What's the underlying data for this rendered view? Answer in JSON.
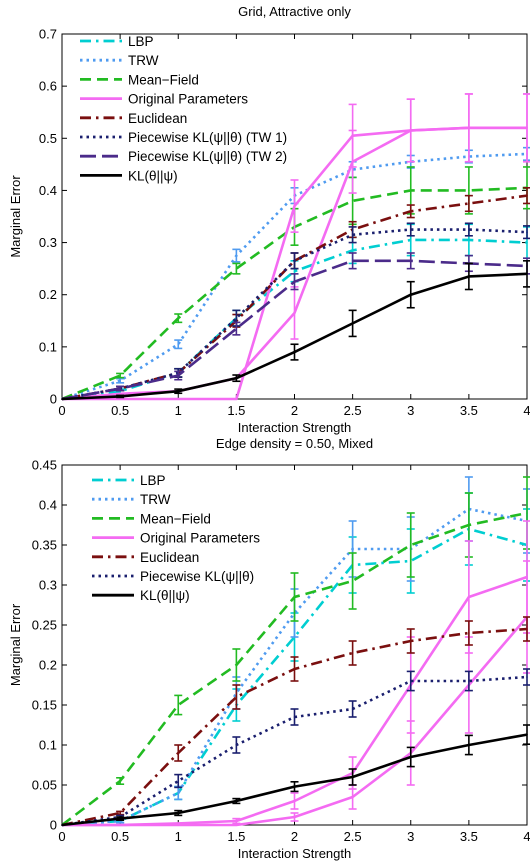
{
  "chart_data": [
    {
      "type": "line",
      "title": "Grid, Attractive only",
      "xlabel": "Interaction Strength",
      "ylabel": "Marginal Error",
      "xlim": [
        0,
        4
      ],
      "ylim": [
        0,
        0.7
      ],
      "xticks": [
        "0",
        "0.5",
        "1",
        "1.5",
        "2",
        "2.5",
        "3",
        "3.5",
        "4"
      ],
      "yticks": [
        "0",
        "0.1",
        "0.2",
        "0.3",
        "0.4",
        "0.5",
        "0.6",
        "0.7"
      ],
      "legend_position": "top-left",
      "series": [
        {
          "name": "LBP",
          "color": "#00CED1",
          "dash": "dashdot",
          "x": [
            0,
            0.5,
            1,
            1.5,
            2,
            2.5,
            3,
            3.5,
            4
          ],
          "y": [
            0,
            0.015,
            0.05,
            0.155,
            0.245,
            0.285,
            0.305,
            0.305,
            0.3
          ],
          "err": [
            0,
            0.004,
            0.008,
            0.015,
            0.02,
            0.025,
            0.03,
            0.03,
            0.03
          ]
        },
        {
          "name": "TRW",
          "color": "#4F9BF0",
          "dash": "dotted",
          "x": [
            0,
            0.5,
            1,
            1.5,
            2,
            2.5,
            3,
            3.5,
            4
          ],
          "y": [
            0,
            0.035,
            0.105,
            0.275,
            0.39,
            0.44,
            0.455,
            0.465,
            0.47
          ],
          "err": [
            0,
            0.004,
            0.008,
            0.012,
            0.015,
            0.015,
            0.012,
            0.012,
            0.012
          ]
        },
        {
          "name": "Mean−Field",
          "color": "#22BB22",
          "dash": "dashed",
          "x": [
            0,
            0.5,
            1,
            1.5,
            2,
            2.5,
            3,
            3.5,
            4
          ],
          "y": [
            0,
            0.045,
            0.155,
            0.25,
            0.33,
            0.38,
            0.4,
            0.4,
            0.405
          ],
          "err": [
            0,
            0.004,
            0.008,
            0.01,
            0.035,
            0.045,
            0.045,
            0.045,
            0.04
          ]
        },
        {
          "name": "Original Parameters",
          "color": "#F46BF2",
          "dash": "solid",
          "x": [
            0,
            0.5,
            1,
            1.5,
            2,
            2.5,
            3,
            3.5,
            4
          ],
          "y": [
            0,
            0,
            0,
            0,
            0.37,
            0.505,
            0.515,
            0.52,
            0.52
          ],
          "err": [
            0,
            0,
            0,
            0,
            0.05,
            0.06,
            0.06,
            0.065,
            0.065
          ]
        },
        {
          "name": "Original Parameters (b)",
          "color": "#F46BF2",
          "dash": "solid",
          "x": [
            0,
            0.5,
            1,
            1.5,
            2,
            2.5,
            3,
            3.5,
            4
          ],
          "y": [
            0,
            0.01,
            0.015,
            0.04,
            0.165,
            0.455,
            0.515,
            0.52,
            0.52
          ],
          "err": [
            0,
            0,
            0,
            0,
            0.05,
            0.06,
            0.06,
            0.065,
            0.065
          ]
        },
        {
          "name": "Euclidean",
          "color": "#7A0F0F",
          "dash": "dashdot",
          "x": [
            0,
            0.5,
            1,
            1.5,
            2,
            2.5,
            3,
            3.5,
            4
          ],
          "y": [
            0,
            0.02,
            0.05,
            0.15,
            0.265,
            0.325,
            0.36,
            0.375,
            0.39
          ],
          "err": [
            0,
            0.004,
            0.008,
            0.012,
            0.015,
            0.015,
            0.012,
            0.015,
            0.015
          ]
        },
        {
          "name": "Piecewise KL(ψ||θ) (TW 1)",
          "color": "#1A1F6E",
          "dash": "dotted",
          "x": [
            0,
            0.5,
            1,
            1.5,
            2,
            2.5,
            3,
            3.5,
            4
          ],
          "y": [
            0,
            0.02,
            0.05,
            0.155,
            0.265,
            0.315,
            0.325,
            0.325,
            0.32
          ],
          "err": [
            0,
            0.004,
            0.008,
            0.015,
            0.015,
            0.015,
            0.012,
            0.012,
            0.012
          ]
        },
        {
          "name": "Piecewise KL(ψ||θ) (TW 2)",
          "color": "#4B2B8A",
          "dash": "longdash",
          "x": [
            0,
            0.5,
            1,
            1.5,
            2,
            2.5,
            3,
            3.5,
            4
          ],
          "y": [
            0,
            0.02,
            0.045,
            0.135,
            0.225,
            0.265,
            0.265,
            0.26,
            0.255
          ],
          "err": [
            0,
            0.004,
            0.008,
            0.012,
            0.015,
            0.015,
            0.015,
            0.015,
            0.015
          ]
        },
        {
          "name": "KL(θ||ψ)",
          "color": "#000000",
          "dash": "solid",
          "x": [
            0,
            0.5,
            1,
            1.5,
            2,
            2.5,
            3,
            3.5,
            4
          ],
          "y": [
            0,
            0.005,
            0.015,
            0.04,
            0.09,
            0.145,
            0.2,
            0.235,
            0.24
          ],
          "err": [
            0,
            0.002,
            0.004,
            0.006,
            0.015,
            0.025,
            0.025,
            0.025,
            0.025
          ]
        }
      ],
      "legend": [
        {
          "label": "LBP",
          "color": "#00CED1",
          "dash": "dashdot"
        },
        {
          "label": "TRW",
          "color": "#4F9BF0",
          "dash": "dotted"
        },
        {
          "label": "Mean−Field",
          "color": "#22BB22",
          "dash": "dashed"
        },
        {
          "label": "Original Parameters",
          "color": "#F46BF2",
          "dash": "solid"
        },
        {
          "label": "Euclidean",
          "color": "#7A0F0F",
          "dash": "dashdot"
        },
        {
          "label": "Piecewise KL(ψ||θ) (TW 1)",
          "color": "#1A1F6E",
          "dash": "dotted"
        },
        {
          "label": "Piecewise KL(ψ||θ) (TW 2)",
          "color": "#4B2B8A",
          "dash": "longdash"
        },
        {
          "label": "KL(θ||ψ)",
          "color": "#000000",
          "dash": "solid"
        }
      ]
    },
    {
      "type": "line",
      "title": "Edge density = 0.50, Mixed",
      "xlabel": "Interaction Strength",
      "ylabel": "Marginal Error",
      "xlim": [
        0,
        4
      ],
      "ylim": [
        0,
        0.45
      ],
      "xticks": [
        "0",
        "0.5",
        "1",
        "1.5",
        "2",
        "2.5",
        "3",
        "3.5",
        "4"
      ],
      "yticks": [
        "0",
        "0.05",
        "0.1",
        "0.15",
        "0.2",
        "0.25",
        "0.3",
        "0.35",
        "0.4",
        "0.45"
      ],
      "legend_position": "top-left",
      "series": [
        {
          "name": "LBP",
          "color": "#00CED1",
          "dash": "dashdot",
          "x": [
            0,
            0.5,
            1,
            1.5,
            2,
            2.5,
            3,
            3.5,
            4
          ],
          "y": [
            0,
            0.005,
            0.04,
            0.15,
            0.235,
            0.325,
            0.33,
            0.37,
            0.35
          ],
          "err": [
            0,
            0.002,
            0.008,
            0.02,
            0.03,
            0.035,
            0.04,
            0.045,
            0.045
          ]
        },
        {
          "name": "TRW",
          "color": "#4F9BF0",
          "dash": "dotted",
          "x": [
            0,
            0.5,
            1,
            1.5,
            2,
            2.5,
            3,
            3.5,
            4
          ],
          "y": [
            0,
            0.005,
            0.04,
            0.165,
            0.265,
            0.345,
            0.345,
            0.395,
            0.38
          ],
          "err": [
            0,
            0.002,
            0.008,
            0.02,
            0.03,
            0.035,
            0.04,
            0.04,
            0.04
          ]
        },
        {
          "name": "Mean−Field",
          "color": "#22BB22",
          "dash": "dashed",
          "x": [
            0,
            0.5,
            1,
            1.5,
            2,
            2.5,
            3,
            3.5,
            4
          ],
          "y": [
            0,
            0.055,
            0.15,
            0.2,
            0.285,
            0.305,
            0.35,
            0.375,
            0.39
          ],
          "err": [
            0,
            0.004,
            0.012,
            0.02,
            0.03,
            0.035,
            0.04,
            0.04,
            0.045
          ]
        },
        {
          "name": "Original Parameters",
          "color": "#F46BF2",
          "dash": "solid",
          "x": [
            0,
            0.5,
            1,
            1.5,
            2,
            2.5,
            3,
            3.5,
            4
          ],
          "y": [
            0,
            0,
            0.002,
            0.005,
            0.03,
            0.065,
            0.175,
            0.285,
            0.31
          ],
          "err": [
            0,
            0,
            0,
            0.003,
            0.01,
            0.02,
            0.06,
            0.07,
            0.07
          ]
        },
        {
          "name": "Original Parameters (b)",
          "color": "#F46BF2",
          "dash": "solid",
          "x": [
            0,
            0.5,
            1,
            1.5,
            2,
            2.5,
            3,
            3.5,
            4
          ],
          "y": [
            0,
            0,
            0,
            0,
            0.01,
            0.035,
            0.09,
            0.175,
            0.26
          ],
          "err": [
            0,
            0,
            0,
            0,
            0.005,
            0.015,
            0.04,
            0.06,
            0.07
          ]
        },
        {
          "name": "Euclidean",
          "color": "#7A0F0F",
          "dash": "dashdot",
          "x": [
            0,
            0.5,
            1,
            1.5,
            2,
            2.5,
            3,
            3.5,
            4
          ],
          "y": [
            0,
            0.015,
            0.09,
            0.16,
            0.195,
            0.215,
            0.23,
            0.24,
            0.245
          ],
          "err": [
            0,
            0.002,
            0.01,
            0.015,
            0.015,
            0.015,
            0.015,
            0.015,
            0.015
          ]
        },
        {
          "name": "Piecewise KL(ψ||θ)",
          "color": "#1A1F6E",
          "dash": "dotted",
          "x": [
            0,
            0.5,
            1,
            1.5,
            2,
            2.5,
            3,
            3.5,
            4
          ],
          "y": [
            0,
            0.01,
            0.055,
            0.1,
            0.135,
            0.145,
            0.18,
            0.18,
            0.185
          ],
          "err": [
            0,
            0.002,
            0.008,
            0.01,
            0.01,
            0.01,
            0.012,
            0.012,
            0.01
          ]
        },
        {
          "name": "KL(θ||ψ)",
          "color": "#000000",
          "dash": "solid",
          "x": [
            0,
            0.5,
            1,
            1.5,
            2,
            2.5,
            3,
            3.5,
            4
          ],
          "y": [
            0,
            0.008,
            0.015,
            0.03,
            0.048,
            0.06,
            0.085,
            0.1,
            0.113
          ],
          "err": [
            0,
            0.002,
            0.003,
            0.003,
            0.006,
            0.01,
            0.012,
            0.012,
            0.012
          ]
        }
      ],
      "legend": [
        {
          "label": "LBP",
          "color": "#00CED1",
          "dash": "dashdot"
        },
        {
          "label": "TRW",
          "color": "#4F9BF0",
          "dash": "dotted"
        },
        {
          "label": "Mean−Field",
          "color": "#22BB22",
          "dash": "dashed"
        },
        {
          "label": "Original Parameters",
          "color": "#F46BF2",
          "dash": "solid"
        },
        {
          "label": "Euclidean",
          "color": "#7A0F0F",
          "dash": "dashdot"
        },
        {
          "label": "Piecewise KL(ψ||θ)",
          "color": "#1A1F6E",
          "dash": "dotted"
        },
        {
          "label": "KL(θ||ψ)",
          "color": "#000000",
          "dash": "solid"
        }
      ]
    }
  ]
}
